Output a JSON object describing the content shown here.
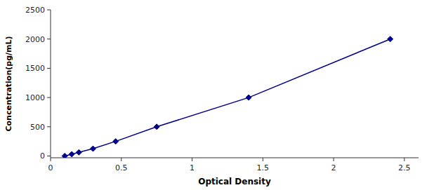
{
  "chart_data": {
    "type": "line",
    "x": [
      0.1,
      0.15,
      0.2,
      0.3,
      0.46,
      0.75,
      1.4,
      2.4
    ],
    "values": [
      0,
      31,
      62,
      125,
      250,
      500,
      1000,
      2000
    ],
    "color": "#00008B",
    "marker": "diamond",
    "line_style": "solid",
    "xlabel": "Optical Density",
    "ylabel": "Concentration(pg/mL)",
    "xlim": [
      0.0,
      2.6
    ],
    "ylim": [
      -30,
      2500
    ],
    "xticks": [
      0,
      0.5,
      1,
      1.5,
      2,
      2.5
    ],
    "yticks": [
      0,
      500,
      1000,
      1500,
      2000,
      2500
    ],
    "grid": false
  }
}
